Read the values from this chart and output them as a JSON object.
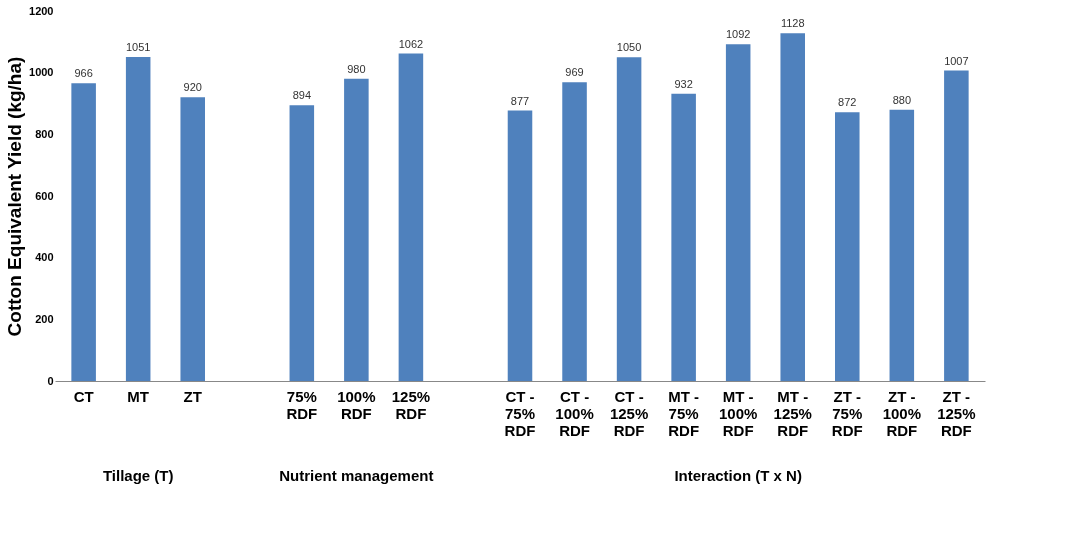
{
  "chart_data": {
    "type": "bar",
    "ylabel": "Cotton Equivalent Yield (kg/ha)",
    "categories": [
      "CT",
      "MT",
      "ZT",
      null,
      "75% RDF",
      "100% RDF",
      "125% RDF",
      null,
      "CT - 75% RDF",
      "CT - 100% RDF",
      "CT - 125% RDF",
      "MT - 75% RDF",
      "MT - 100% RDF",
      "MT - 125% RDF",
      "ZT - 75% RDF",
      "ZT - 100% RDF",
      "ZT - 125% RDF"
    ],
    "values": [
      966,
      1051,
      920,
      null,
      894,
      980,
      1062,
      null,
      877,
      969,
      1050,
      932,
      1092,
      1128,
      872,
      880,
      1007
    ],
    "color": "#4f81bd",
    "ylim": [
      0,
      1200
    ],
    "yticks": [
      0,
      200,
      400,
      600,
      800,
      1000,
      1200
    ],
    "grid": false,
    "data_labels": true,
    "annotations": [
      "Tillage (T)",
      "Nutrient management",
      "Interaction (T x N)"
    ]
  }
}
